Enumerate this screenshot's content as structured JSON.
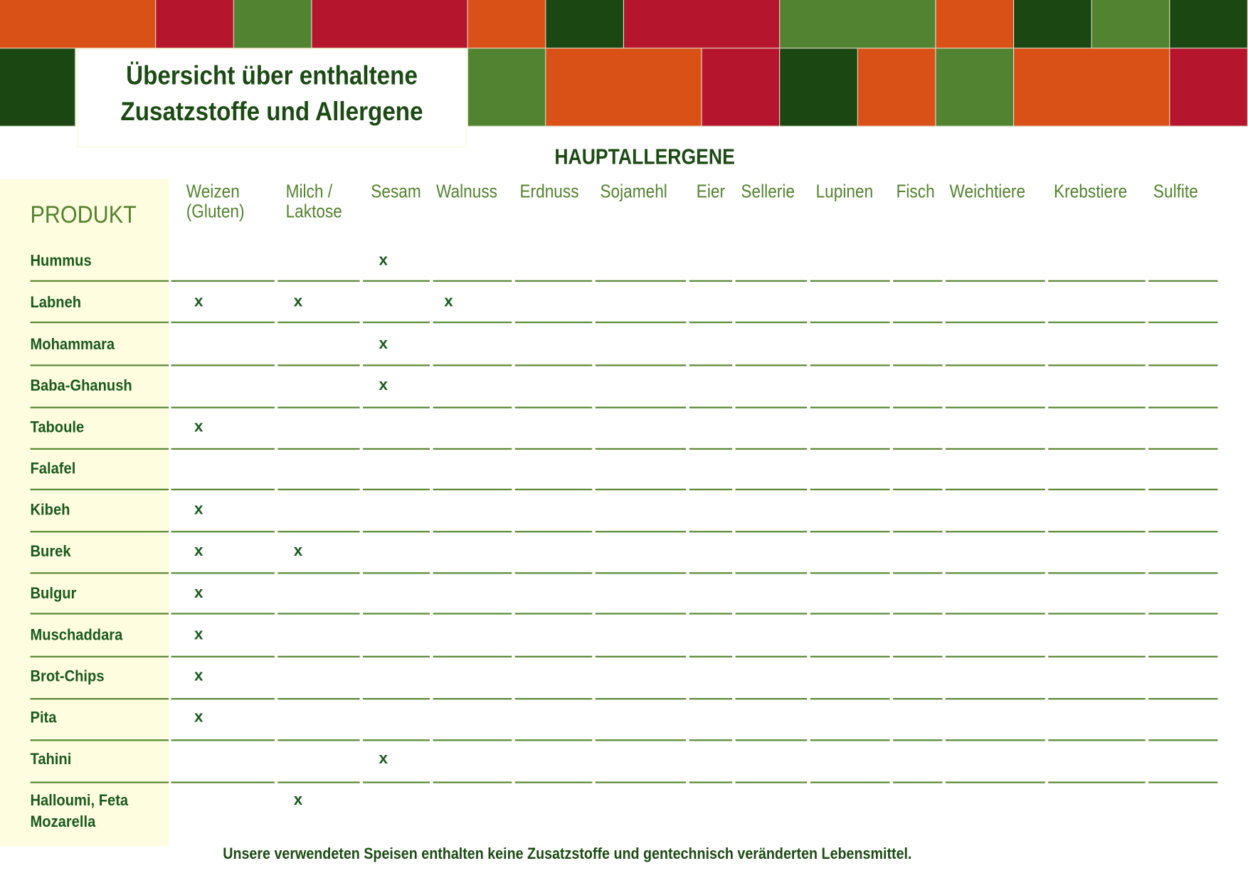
{
  "header": {
    "title_line1": "Übersicht über enthaltene",
    "title_line2": "Zusatzstoffe und Allergene",
    "section_title": "HAUPTALLERGENE"
  },
  "colors": {
    "orange": "#d95116",
    "red": "#b5162d",
    "light_green": "#528330",
    "dark_green": "#1b4712",
    "panel": "#fffde0",
    "text_green": "#1a5a1e"
  },
  "table": {
    "product_header": "PRODUKT",
    "allergens": [
      "Weizen\n(Gluten)",
      "Milch /\nLaktose",
      "Sesam",
      "Walnuss",
      "Erdnuss",
      "Sojamehl",
      "Eier",
      "Sellerie",
      "Lupinen",
      "Fisch",
      "Weichtiere",
      "Krebstiere",
      "Sulfite"
    ],
    "mark": "x",
    "rows": [
      {
        "product": "Hummus",
        "marks": [
          2
        ]
      },
      {
        "product": "Labneh",
        "marks": [
          0,
          1,
          3
        ]
      },
      {
        "product": "Mohammara",
        "marks": [
          2
        ]
      },
      {
        "product": "Baba-Ghanush",
        "marks": [
          2
        ]
      },
      {
        "product": "Taboule",
        "marks": [
          0
        ]
      },
      {
        "product": "Falafel",
        "marks": []
      },
      {
        "product": "Kibeh",
        "marks": [
          0
        ]
      },
      {
        "product": "Burek",
        "marks": [
          0,
          1
        ]
      },
      {
        "product": "Bulgur",
        "marks": [
          0
        ]
      },
      {
        "product": "Muschaddara",
        "marks": [
          0
        ]
      },
      {
        "product": "Brot-Chips",
        "marks": [
          0
        ]
      },
      {
        "product": "Pita",
        "marks": [
          0
        ]
      },
      {
        "product": "Tahini",
        "marks": [
          2
        ]
      },
      {
        "product": "Halloumi, Feta\nMozarella",
        "marks": [
          1
        ]
      }
    ]
  },
  "footer": "Unsere verwendeten Speisen enthalten keine Zusatzstoffe und gentechnisch veränderten Lebensmittel."
}
